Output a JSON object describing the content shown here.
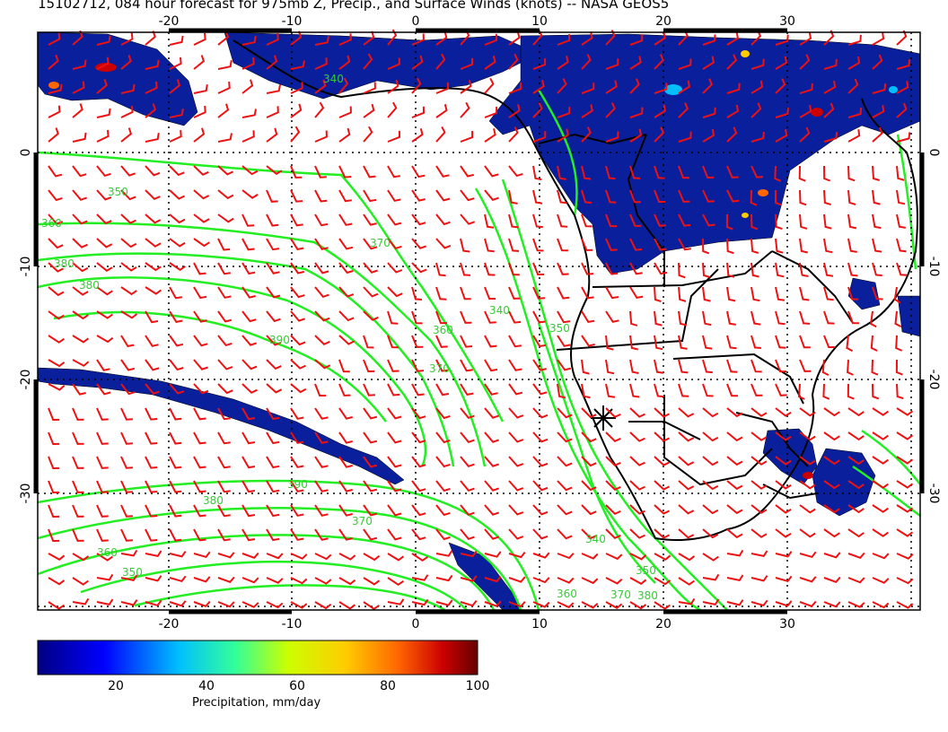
{
  "title": "15102712, 084 hour forecast for 975mb Z, Precip., and Surface Winds (knots) -- NASA GEOS5",
  "map": {
    "lon_ticks_top": [
      "-20",
      "-10",
      "0",
      "10",
      "20",
      "30"
    ],
    "lon_ticks_bottom": [
      "-20",
      "-10",
      "0",
      "10",
      "20",
      "30"
    ],
    "lat_ticks_left": [
      "0",
      "-10",
      "-20",
      "-30"
    ],
    "lat_ticks_right": [
      "0",
      "-10",
      "-20",
      "-30"
    ],
    "contour_labels": [
      "340",
      "350",
      "360",
      "370",
      "380",
      "390",
      "380",
      "370",
      "360",
      "350",
      "340",
      "390",
      "380",
      "370",
      "360",
      "350",
      "340",
      "370",
      "380",
      "360",
      "350"
    ],
    "marker": "asterisk-location",
    "colors": {
      "wind_barbs": "#ff0000",
      "contours": "#00ff00",
      "precip_low": "#00008b",
      "coast": "#000000"
    }
  },
  "colorbar": {
    "ticks": [
      "20",
      "40",
      "60",
      "80",
      "100"
    ],
    "label": "Precipitation, mm/day",
    "colors": [
      "#000080",
      "#0000ff",
      "#00bfff",
      "#33ff99",
      "#ccff00",
      "#ffcc00",
      "#ff6600",
      "#cc0000",
      "#660000"
    ]
  }
}
